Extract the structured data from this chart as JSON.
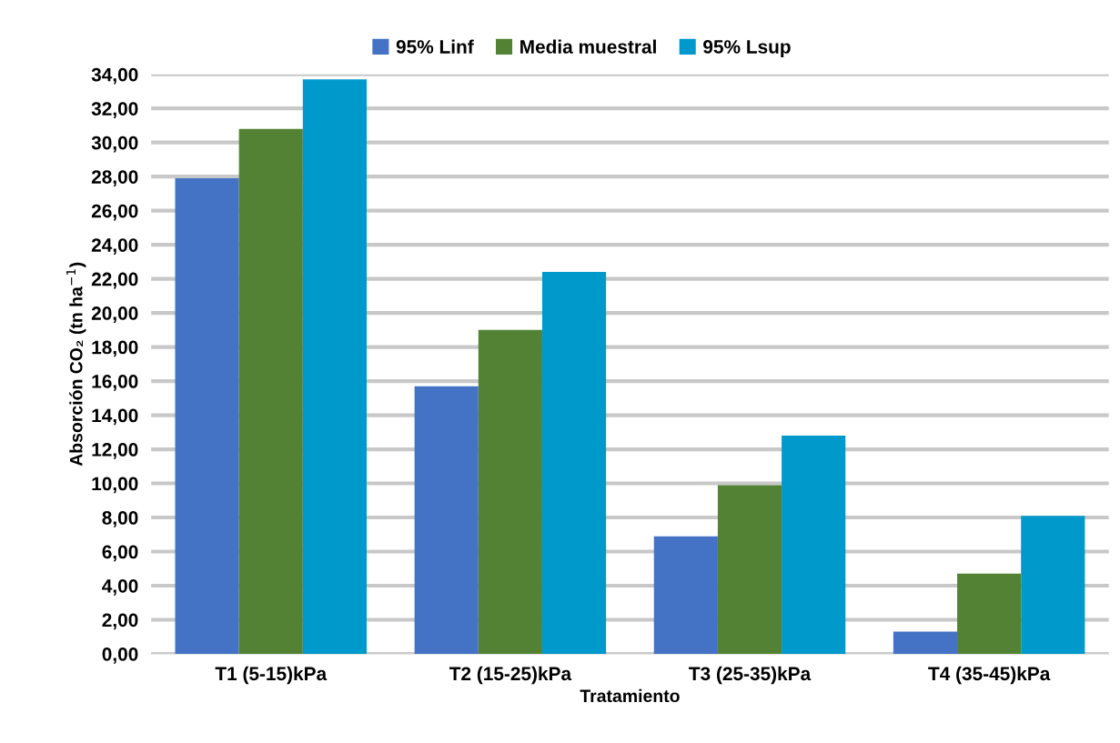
{
  "chart_data": {
    "type": "bar",
    "xlabel": "Tratamiento",
    "ylabel": "Absorción CO₂ (tn ha$^{−1}$)",
    "categories": [
      "T1 (5-15)kPa",
      "T2 (15-25)kPa",
      "T3 (25-35)kPa",
      "T4 (35-45)kPa"
    ],
    "series": [
      {
        "name": "95% Linf",
        "color": "#4472c4",
        "values": [
          27.9,
          15.7,
          6.9,
          1.3
        ]
      },
      {
        "name": "Media muestral",
        "color": "#548235",
        "values": [
          30.8,
          19.0,
          9.9,
          4.7
        ]
      },
      {
        "name": "95% Lsup",
        "color": "#0099cc",
        "values": [
          33.7,
          22.4,
          12.8,
          8.1
        ]
      }
    ],
    "ylim": [
      0,
      34
    ],
    "yticks": [
      {
        "value": 0,
        "label": "0,00"
      },
      {
        "value": 2,
        "label": "2,00"
      },
      {
        "value": 4,
        "label": "4,00"
      },
      {
        "value": 6,
        "label": "6,00"
      },
      {
        "value": 8,
        "label": "8,00"
      },
      {
        "value": 10,
        "label": "10,00"
      },
      {
        "value": 12,
        "label": "12,00"
      },
      {
        "value": 14,
        "label": "14,00"
      },
      {
        "value": 16,
        "label": "16,00"
      },
      {
        "value": 18,
        "label": "18,00"
      },
      {
        "value": 20,
        "label": "20,00"
      },
      {
        "value": 22,
        "label": "22,00"
      },
      {
        "value": 24,
        "label": "24,00"
      },
      {
        "value": 26,
        "label": "26,00"
      },
      {
        "value": 28,
        "label": "28,00"
      },
      {
        "value": 30,
        "label": "30,00"
      },
      {
        "value": 32,
        "label": "32,00"
      },
      {
        "value": 34,
        "label": "34,00"
      }
    ],
    "grid": "y",
    "legend": "top"
  }
}
